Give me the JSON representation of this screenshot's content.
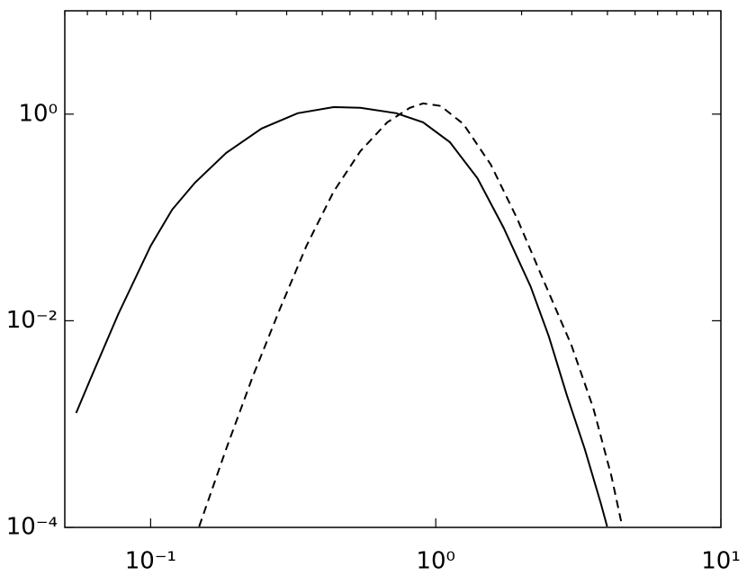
{
  "chart_data": {
    "type": "line",
    "xscale": "log",
    "yscale": "log",
    "xlim": [
      0.05,
      10
    ],
    "ylim": [
      0.0001,
      10
    ],
    "xticks": [
      {
        "value": 0.1,
        "label": "10⁻¹"
      },
      {
        "value": 1,
        "label": "10⁰"
      },
      {
        "value": 10,
        "label": "10¹"
      }
    ],
    "xminorticks": [
      0.05,
      0.06,
      0.07,
      0.08,
      0.09,
      0.2,
      0.3,
      0.4,
      0.5,
      0.6,
      0.7,
      0.8,
      0.9,
      2,
      3,
      4,
      5,
      6,
      7,
      8,
      9
    ],
    "yticks": [
      {
        "value": 0.0001,
        "label": "10⁻⁴"
      },
      {
        "value": 0.01,
        "label": "10⁻²"
      },
      {
        "value": 1,
        "label": "10⁰"
      }
    ],
    "series": [
      {
        "color": "#000000",
        "dash": "solid",
        "x": [
          0.0548,
          0.062,
          0.0771,
          0.1,
          0.119,
          0.143,
          0.184,
          0.245,
          0.328,
          0.438,
          0.544,
          0.727,
          0.903,
          1.12,
          1.4,
          1.73,
          2.15,
          2.49,
          2.88,
          3.33,
          3.79,
          3.99
        ],
        "values": [
          0.00128,
          0.00288,
          0.0117,
          0.0531,
          0.119,
          0.217,
          0.421,
          0.725,
          1.02,
          1.17,
          1.15,
          1.02,
          0.834,
          0.536,
          0.24,
          0.0794,
          0.0215,
          0.00711,
          0.00192,
          0.000575,
          0.000172,
          0.000102
        ]
      },
      {
        "color": "#000000",
        "dash": "dashed",
        "x": [
          0.148,
          0.184,
          0.228,
          0.284,
          0.352,
          0.438,
          0.544,
          0.676,
          0.811,
          0.903,
          1.04,
          1.25,
          1.56,
          1.93,
          2.4,
          2.99,
          3.57,
          4.13,
          4.51
        ],
        "values": [
          0.000102,
          0.000575,
          0.00288,
          0.013,
          0.0531,
          0.177,
          0.438,
          0.834,
          1.15,
          1.27,
          1.2,
          0.802,
          0.324,
          0.097,
          0.0238,
          0.00581,
          0.00142,
          0.000315,
          0.000102
        ]
      }
    ]
  }
}
